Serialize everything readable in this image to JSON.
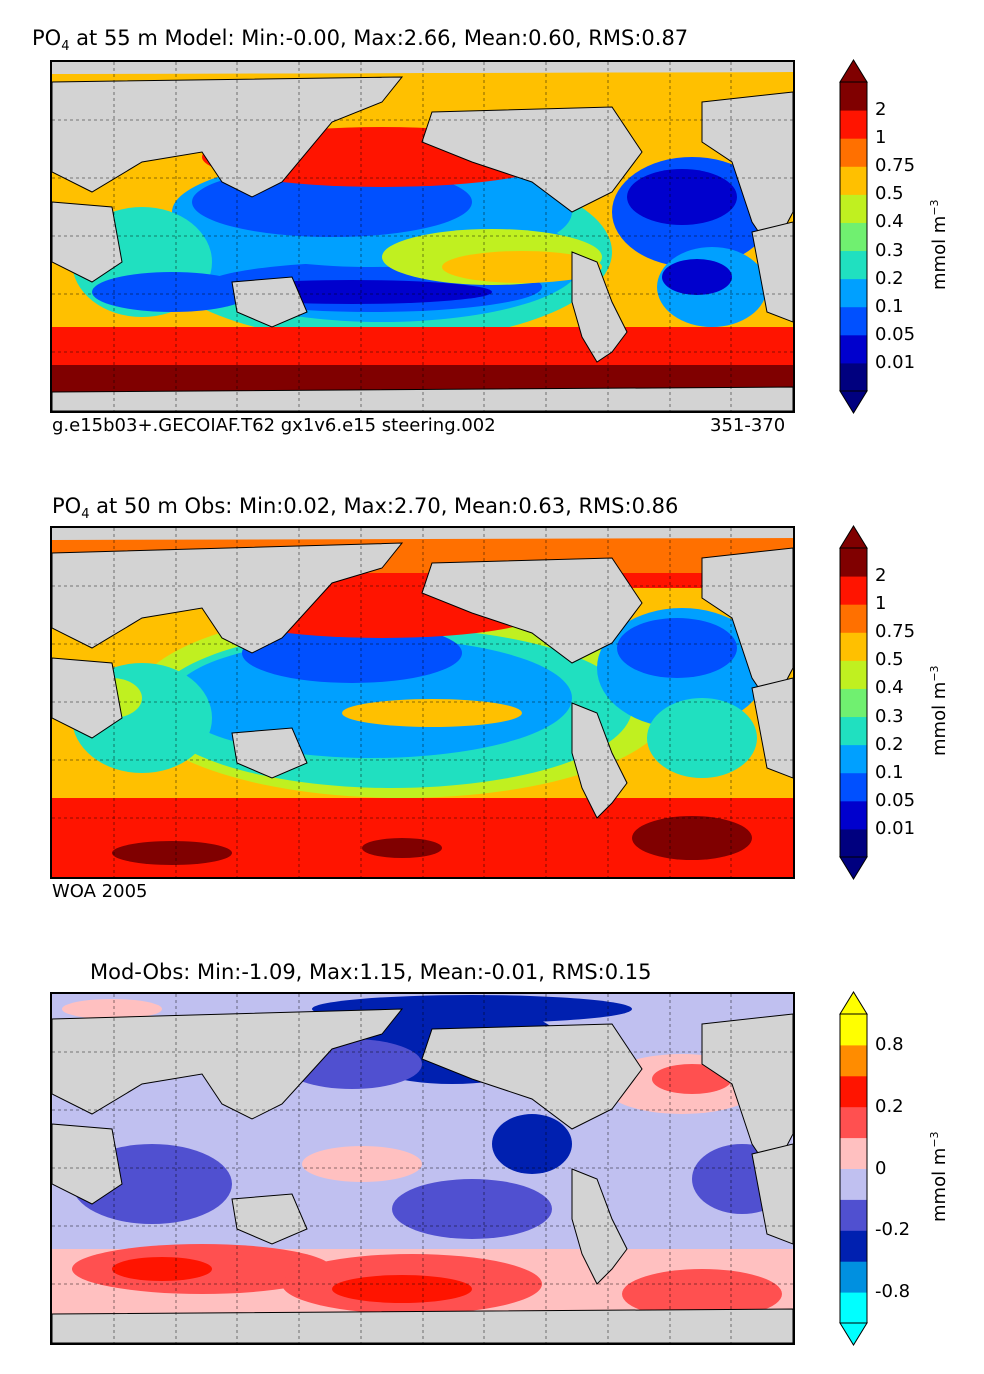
{
  "panels": [
    {
      "title_var": "PO",
      "title_sub": "4",
      "title_rest": " at 55 m Model: Min:-0.00, Max:2.66, Mean:0.60, RMS:0.87",
      "caption_left": "g.e15b03+.GECOIAF.T62 gx1v6.e15 steering.002",
      "caption_right": "351-370",
      "unit": "mmol m",
      "unit_exp": "−3",
      "colorbar": {
        "ticks": [
          "2",
          "1",
          "0.75",
          "0.5",
          "0.4",
          "0.3",
          "0.2",
          "0.1",
          "0.05",
          "0.01"
        ],
        "colors": [
          "#00007f",
          "#0000cd",
          "#0050ff",
          "#00a0ff",
          "#20e0c0",
          "#70f070",
          "#c0f020",
          "#ffc000",
          "#ff7000",
          "#ff1400",
          "#800000"
        ]
      }
    },
    {
      "title_var": "PO",
      "title_sub": "4",
      "title_rest": " at 50 m Obs: Min:0.02, Max:2.70, Mean:0.63, RMS:0.86",
      "caption_left": "WOA 2005",
      "caption_right": "",
      "unit": "mmol m",
      "unit_exp": "−3",
      "colorbar": {
        "ticks": [
          "2",
          "1",
          "0.75",
          "0.5",
          "0.4",
          "0.3",
          "0.2",
          "0.1",
          "0.05",
          "0.01"
        ],
        "colors": [
          "#00007f",
          "#0000cd",
          "#0050ff",
          "#00a0ff",
          "#20e0c0",
          "#70f070",
          "#c0f020",
          "#ffc000",
          "#ff7000",
          "#ff1400",
          "#800000"
        ]
      }
    },
    {
      "title_var": "",
      "title_sub": "",
      "title_rest": "Mod-Obs: Min:-1.09, Max:1.15, Mean:-0.01, RMS:0.15",
      "caption_left": "",
      "caption_right": "",
      "unit": "mmol m",
      "unit_exp": "−3",
      "colorbar": {
        "ticks": [
          "0.8",
          "0.2",
          "0",
          "-0.2",
          "-0.8"
        ],
        "colors": [
          "#00ffff",
          "#0090e0",
          "#0020b0",
          "#5050d0",
          "#c0c0f0",
          "#ffc0c0",
          "#ff5050",
          "#ff1400",
          "#ff8c00",
          "#ffff00"
        ]
      }
    }
  ]
}
